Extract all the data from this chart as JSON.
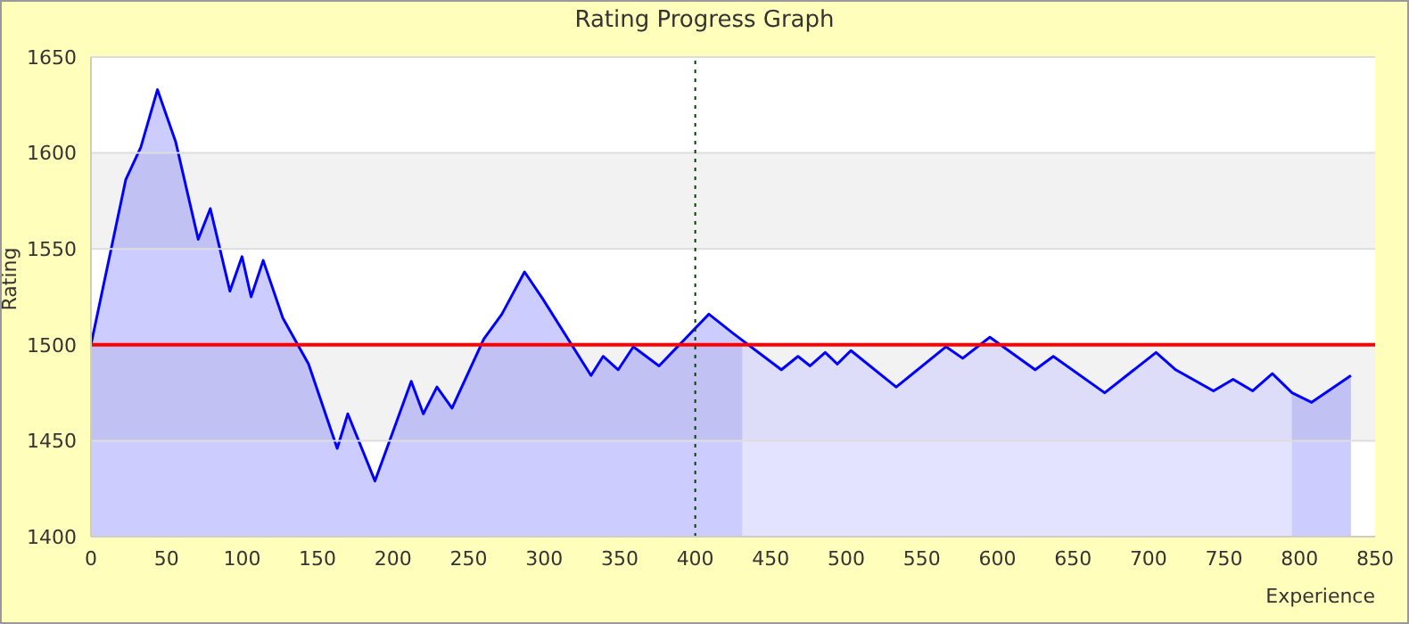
{
  "chart_data": {
    "type": "area",
    "title": "Rating Progress Graph",
    "xlabel": "Experience",
    "ylabel": "Rating",
    "x": [
      0,
      23,
      33,
      44,
      56,
      71,
      79,
      92,
      100,
      106,
      114,
      127,
      144,
      163,
      170,
      188,
      212,
      220,
      229,
      239,
      260,
      272,
      287,
      299,
      331,
      339,
      349,
      359,
      376,
      409,
      425,
      457,
      468,
      476,
      486,
      494,
      503,
      533,
      566,
      577,
      595,
      625,
      637,
      671,
      705,
      718,
      743,
      756,
      769,
      782,
      795,
      808,
      834
    ],
    "series": [
      {
        "color": "#0000ff",
        "values": [
          1500,
          1586,
          1603,
          1633,
          1606,
          1555,
          1571,
          1528,
          1546,
          1525,
          1544,
          1514,
          1490,
          1446,
          1464,
          1429,
          1481,
          1464,
          1478,
          1467,
          1503,
          1516,
          1538,
          1524,
          1484,
          1494,
          1487,
          1499,
          1489,
          1516,
          1506,
          1487,
          1494,
          1489,
          1496,
          1490,
          1497,
          1478,
          1499,
          1493,
          1504,
          1487,
          1494,
          1475,
          1496,
          1487,
          1476,
          1482,
          1476,
          1485,
          1475,
          1470,
          1484
        ]
      }
    ],
    "xlim": [
      0,
      850
    ],
    "xticks": [
      0,
      50,
      100,
      150,
      200,
      250,
      300,
      350,
      400,
      450,
      500,
      550,
      600,
      650,
      700,
      750,
      800,
      850
    ],
    "ylim": [
      1400,
      1650
    ],
    "yticks": [
      1400,
      1450,
      1500,
      1550,
      1600,
      1650
    ],
    "grid": "y",
    "ref_lines": [
      {
        "axis": "y",
        "value": 1500,
        "color": "#ff0000",
        "line_style": "solid"
      },
      {
        "axis": "x",
        "value": 400,
        "color": "#004400",
        "line_style": "dotted"
      }
    ],
    "bands": [
      {
        "axis": "x",
        "from": 431,
        "to": 795,
        "color": "#ffffff"
      }
    ]
  }
}
